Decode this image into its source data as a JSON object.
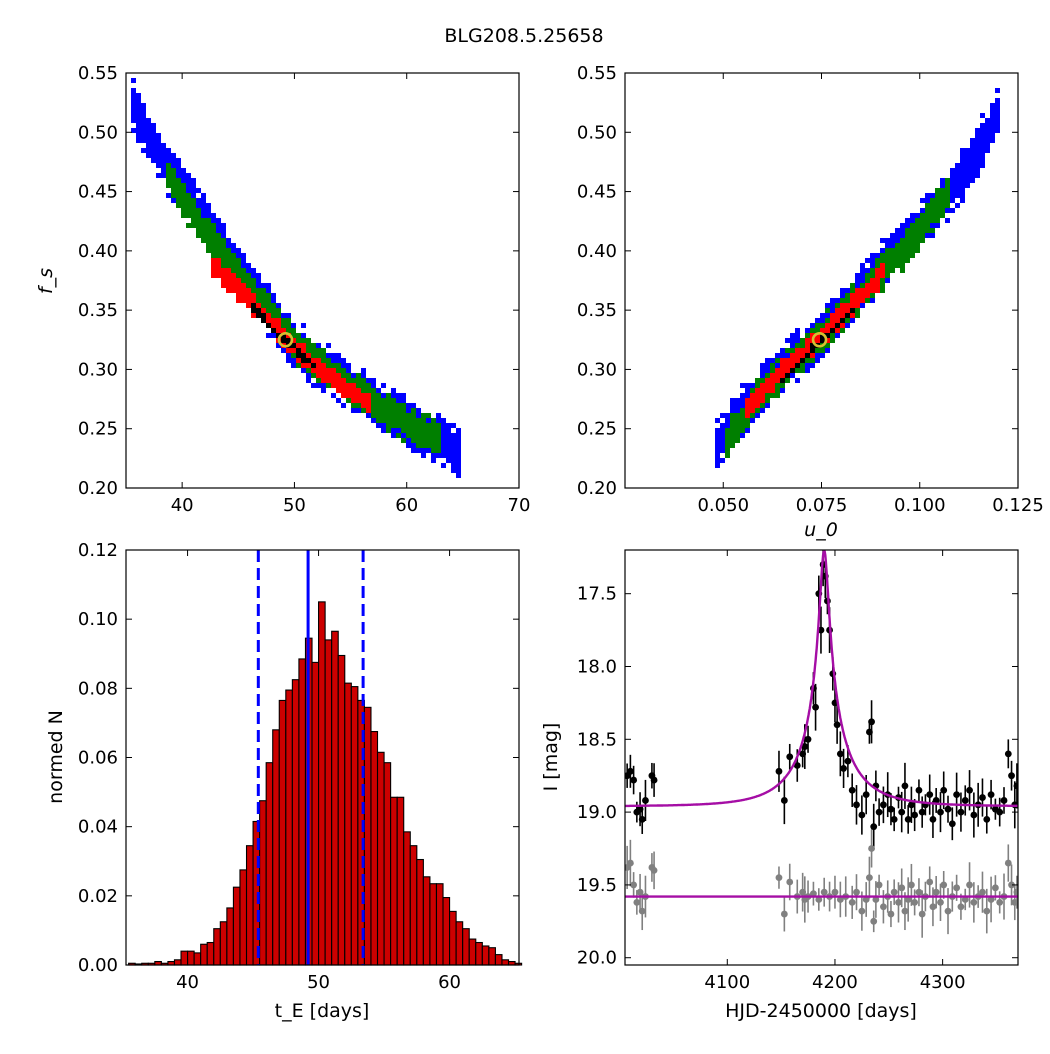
{
  "figure": {
    "title": "BLG208.5.25658"
  },
  "chart_data": [
    {
      "id": "fs_vs_tE",
      "type": "heatmap",
      "xlabel": "",
      "ylabel": "f_s",
      "xlim": [
        35,
        70
      ],
      "ylim": [
        0.2,
        0.55
      ],
      "xticks": [
        40,
        50,
        60,
        70
      ],
      "xtick_labels": [
        "40",
        "50",
        "60",
        "70"
      ],
      "yticks": [
        0.2,
        0.25,
        0.3,
        0.35,
        0.4,
        0.45,
        0.5,
        0.55
      ],
      "ytick_labels": [
        "0.20",
        "0.25",
        "0.30",
        "0.35",
        "0.40",
        "0.45",
        "0.50",
        "0.55"
      ],
      "regions": [
        {
          "level": "3-sigma",
          "color": "#0000ff",
          "ridge": [
            [
              35.5,
              0.525
            ],
            [
              38,
              0.48
            ],
            [
              41,
              0.44
            ],
            [
              45,
              0.385
            ],
            [
              50,
              0.32
            ],
            [
              55,
              0.285
            ],
            [
              60,
              0.255
            ],
            [
              65,
              0.23
            ]
          ],
          "width": 0.018
        },
        {
          "level": "2-sigma",
          "color": "#007f00",
          "ridge": [
            [
              38.5,
              0.465
            ],
            [
              41,
              0.43
            ],
            [
              45,
              0.38
            ],
            [
              50,
              0.322
            ],
            [
              55,
              0.283
            ],
            [
              60,
              0.255
            ],
            [
              63,
              0.24
            ]
          ],
          "width": 0.013
        },
        {
          "level": "1-sigma",
          "color": "#ff0000",
          "ridge": [
            [
              42.5,
              0.39
            ],
            [
              45,
              0.368
            ],
            [
              50,
              0.318
            ],
            [
              55,
              0.28
            ],
            [
              57,
              0.268
            ]
          ],
          "width": 0.008
        },
        {
          "level": "best",
          "color": "#000000",
          "ridge": [
            [
              46,
              0.355
            ],
            [
              48,
              0.335
            ],
            [
              50,
              0.318
            ],
            [
              52,
              0.3
            ]
          ],
          "width": 0.003
        }
      ],
      "marker": {
        "x": 49.2,
        "y": 0.325,
        "color": "#d4c030"
      }
    },
    {
      "id": "fs_vs_u0",
      "type": "heatmap",
      "xlabel": "u_0",
      "ylabel": "",
      "xlim": [
        0.025,
        0.125
      ],
      "ylim": [
        0.2,
        0.55
      ],
      "xticks": [
        0.05,
        0.075,
        0.1,
        0.125
      ],
      "xtick_labels": [
        "0.050",
        "0.075",
        "0.100",
        "0.125"
      ],
      "yticks": [
        0.2,
        0.25,
        0.3,
        0.35,
        0.4,
        0.45,
        0.5,
        0.55
      ],
      "ytick_labels": [
        "0.20",
        "0.25",
        "0.30",
        "0.35",
        "0.40",
        "0.45",
        "0.50",
        "0.55"
      ],
      "regions": [
        {
          "level": "3-sigma",
          "color": "#0000ff",
          "ridge": [
            [
              0.048,
              0.235
            ],
            [
              0.06,
              0.285
            ],
            [
              0.075,
              0.33
            ],
            [
              0.09,
              0.385
            ],
            [
              0.1,
              0.42
            ],
            [
              0.11,
              0.46
            ],
            [
              0.12,
              0.515
            ]
          ],
          "width": 0.018
        },
        {
          "level": "2-sigma",
          "color": "#007f00",
          "ridge": [
            [
              0.051,
              0.24
            ],
            [
              0.06,
              0.282
            ],
            [
              0.075,
              0.328
            ],
            [
              0.09,
              0.38
            ],
            [
              0.1,
              0.415
            ],
            [
              0.108,
              0.455
            ]
          ],
          "width": 0.013
        },
        {
          "level": "1-sigma",
          "color": "#ff0000",
          "ridge": [
            [
              0.056,
              0.265
            ],
            [
              0.065,
              0.3
            ],
            [
              0.075,
              0.328
            ],
            [
              0.085,
              0.36
            ],
            [
              0.091,
              0.383
            ]
          ],
          "width": 0.008
        },
        {
          "level": "best",
          "color": "#000000",
          "ridge": [
            [
              0.065,
              0.29
            ],
            [
              0.072,
              0.315
            ],
            [
              0.078,
              0.335
            ],
            [
              0.083,
              0.35
            ]
          ],
          "width": 0.003
        }
      ],
      "marker": {
        "x": 0.0745,
        "y": 0.325,
        "color": "#d4c030"
      }
    },
    {
      "id": "tE_histogram",
      "type": "bar",
      "xlabel": "t_E [days]",
      "ylabel": "normed N",
      "xlim": [
        35.3,
        65.3
      ],
      "ylim": [
        0,
        0.12
      ],
      "xticks": [
        40,
        50,
        60
      ],
      "xtick_labels": [
        "40",
        "50",
        "60"
      ],
      "yticks": [
        0,
        0.02,
        0.04,
        0.06,
        0.08,
        0.1,
        0.12
      ],
      "ytick_labels": [
        "0.00",
        "0.02",
        "0.04",
        "0.06",
        "0.08",
        "0.10",
        "0.12"
      ],
      "bar_color": "#cc0000",
      "bin_width": 0.5,
      "bin_start": 35.5,
      "values": [
        0.0005,
        0.0003,
        0.0005,
        0.0005,
        0.001,
        0.0005,
        0.001,
        0.0015,
        0.004,
        0.004,
        0.0035,
        0.006,
        0.0065,
        0.0105,
        0.0125,
        0.0165,
        0.0225,
        0.0275,
        0.0345,
        0.0415,
        0.0475,
        0.0585,
        0.068,
        0.0765,
        0.0795,
        0.0825,
        0.0885,
        0.0945,
        0.0875,
        0.105,
        0.094,
        0.0965,
        0.0895,
        0.0815,
        0.0805,
        0.0765,
        0.0745,
        0.0675,
        0.0615,
        0.0585,
        0.0485,
        0.0485,
        0.0385,
        0.0345,
        0.0305,
        0.0255,
        0.0235,
        0.0235,
        0.0195,
        0.0155,
        0.0125,
        0.0105,
        0.0075,
        0.0065,
        0.0055,
        0.005,
        0.003,
        0.0015,
        0.001,
        0.0005
      ],
      "median_line": {
        "x": 49.2,
        "color": "#0000ff"
      },
      "interval_lines": {
        "x": [
          45.4,
          53.4
        ],
        "color": "#0000ff"
      }
    },
    {
      "id": "lightcurve",
      "type": "scatter",
      "xlabel": "HJD-2450000 [days]",
      "ylabel": "I [mag]",
      "xlim": [
        4005,
        4370
      ],
      "ylim": [
        20.05,
        17.2
      ],
      "y_inverted": true,
      "xticks": [
        4100,
        4200,
        4300
      ],
      "xtick_labels": [
        "4100",
        "4200",
        "4300"
      ],
      "yticks": [
        17.5,
        18,
        18.5,
        19,
        19.5,
        20
      ],
      "ytick_labels": [
        "17.5",
        "18.0",
        "18.5",
        "19.0",
        "19.5",
        "20.0"
      ],
      "series": [
        {
          "kind": "model",
          "color": "#a50ea5",
          "model": {
            "t0": 4190,
            "tE": 49.2,
            "u0": 0.0745,
            "fs": 0.325,
            "baseline": 18.96
          }
        },
        {
          "kind": "residual_baseline",
          "color": "#a50ea5",
          "y": 19.58
        },
        {
          "kind": "data",
          "color": "#000000",
          "points": [
            [
              4007,
              18.75
            ],
            [
              4010,
              18.72
            ],
            [
              4013,
              18.78
            ],
            [
              4016,
              19.0
            ],
            [
              4019,
              18.98
            ],
            [
              4021,
              19.05
            ],
            [
              4024,
              18.92
            ],
            [
              4030,
              18.75
            ],
            [
              4032,
              18.78
            ],
            [
              4148,
              18.72
            ],
            [
              4153,
              18.92
            ],
            [
              4158,
              18.62
            ],
            [
              4165,
              18.68
            ],
            [
              4170,
              18.6
            ],
            [
              4172,
              18.55
            ],
            [
              4175,
              18.5
            ],
            [
              4180,
              18.15
            ],
            [
              4182,
              18.28
            ],
            [
              4185,
              17.5
            ],
            [
              4187,
              17.75
            ],
            [
              4189,
              17.3
            ],
            [
              4191,
              17.38
            ],
            [
              4193,
              17.55
            ],
            [
              4195,
              17.75
            ],
            [
              4198,
              18.05
            ],
            [
              4200,
              18.25
            ],
            [
              4202,
              18.4
            ],
            [
              4205,
              18.6
            ],
            [
              4208,
              18.7
            ],
            [
              4212,
              18.65
            ],
            [
              4216,
              18.85
            ],
            [
              4220,
              18.95
            ],
            [
              4225,
              19.02
            ],
            [
              4229,
              18.88
            ],
            [
              4232,
              18.45
            ],
            [
              4234,
              18.38
            ],
            [
              4236,
              19.1
            ],
            [
              4238,
              18.82
            ],
            [
              4241,
              19.0
            ],
            [
              4245,
              18.95
            ],
            [
              4249,
              18.88
            ],
            [
              4252,
              18.98
            ],
            [
              4255,
              19.05
            ],
            [
              4259,
              18.9
            ],
            [
              4262,
              19.0
            ],
            [
              4265,
              18.82
            ],
            [
              4268,
              19.05
            ],
            [
              4271,
              18.95
            ],
            [
              4274,
              19.02
            ],
            [
              4278,
              18.85
            ],
            [
              4281,
              19.0
            ],
            [
              4284,
              18.95
            ],
            [
              4288,
              18.88
            ],
            [
              4291,
              19.05
            ],
            [
              4294,
              18.92
            ],
            [
              4298,
              19.0
            ],
            [
              4301,
              18.85
            ],
            [
              4305,
              18.98
            ],
            [
              4309,
              19.08
            ],
            [
              4313,
              18.88
            ],
            [
              4317,
              19.0
            ],
            [
              4321,
              18.92
            ],
            [
              4325,
              18.85
            ],
            [
              4329,
              19.02
            ],
            [
              4333,
              18.95
            ],
            [
              4337,
              18.9
            ],
            [
              4341,
              19.05
            ],
            [
              4345,
              18.88
            ],
            [
              4349,
              18.98
            ],
            [
              4353,
              19.0
            ],
            [
              4357,
              18.92
            ],
            [
              4361,
              18.6
            ],
            [
              4364,
              18.75
            ],
            [
              4367,
              18.95
            ],
            [
              4369,
              18.82
            ]
          ]
        },
        {
          "kind": "residuals",
          "color": "#808080",
          "points": [
            [
              4007,
              19.38
            ],
            [
              4010,
              19.35
            ],
            [
              4013,
              19.5
            ],
            [
              4016,
              19.62
            ],
            [
              4019,
              19.55
            ],
            [
              4021,
              19.68
            ],
            [
              4024,
              19.58
            ],
            [
              4030,
              19.38
            ],
            [
              4032,
              19.4
            ],
            [
              4148,
              19.45
            ],
            [
              4153,
              19.7
            ],
            [
              4158,
              19.48
            ],
            [
              4165,
              19.58
            ],
            [
              4170,
              19.55
            ],
            [
              4172,
              19.6
            ],
            [
              4175,
              19.58
            ],
            [
              4180,
              19.56
            ],
            [
              4185,
              19.6
            ],
            [
              4190,
              19.55
            ],
            [
              4195,
              19.58
            ],
            [
              4200,
              19.55
            ],
            [
              4205,
              19.6
            ],
            [
              4210,
              19.58
            ],
            [
              4216,
              19.62
            ],
            [
              4220,
              19.55
            ],
            [
              4225,
              19.68
            ],
            [
              4229,
              19.6
            ],
            [
              4232,
              19.45
            ],
            [
              4234,
              19.25
            ],
            [
              4236,
              19.75
            ],
            [
              4238,
              19.6
            ],
            [
              4241,
              19.5
            ],
            [
              4245,
              19.65
            ],
            [
              4249,
              19.58
            ],
            [
              4252,
              19.7
            ],
            [
              4255,
              19.55
            ],
            [
              4259,
              19.62
            ],
            [
              4262,
              19.52
            ],
            [
              4265,
              19.68
            ],
            [
              4268,
              19.6
            ],
            [
              4271,
              19.5
            ],
            [
              4274,
              19.62
            ],
            [
              4278,
              19.55
            ],
            [
              4281,
              19.7
            ],
            [
              4284,
              19.58
            ],
            [
              4288,
              19.48
            ],
            [
              4291,
              19.65
            ],
            [
              4294,
              19.55
            ],
            [
              4298,
              19.62
            ],
            [
              4301,
              19.5
            ],
            [
              4305,
              19.68
            ],
            [
              4309,
              19.58
            ],
            [
              4313,
              19.52
            ],
            [
              4317,
              19.65
            ],
            [
              4321,
              19.6
            ],
            [
              4325,
              19.5
            ],
            [
              4329,
              19.62
            ],
            [
              4333,
              19.58
            ],
            [
              4337,
              19.55
            ],
            [
              4341,
              19.68
            ],
            [
              4345,
              19.6
            ],
            [
              4349,
              19.52
            ],
            [
              4353,
              19.62
            ],
            [
              4357,
              19.58
            ],
            [
              4361,
              19.35
            ],
            [
              4364,
              19.5
            ],
            [
              4367,
              19.62
            ],
            [
              4369,
              19.55
            ]
          ]
        }
      ]
    }
  ]
}
